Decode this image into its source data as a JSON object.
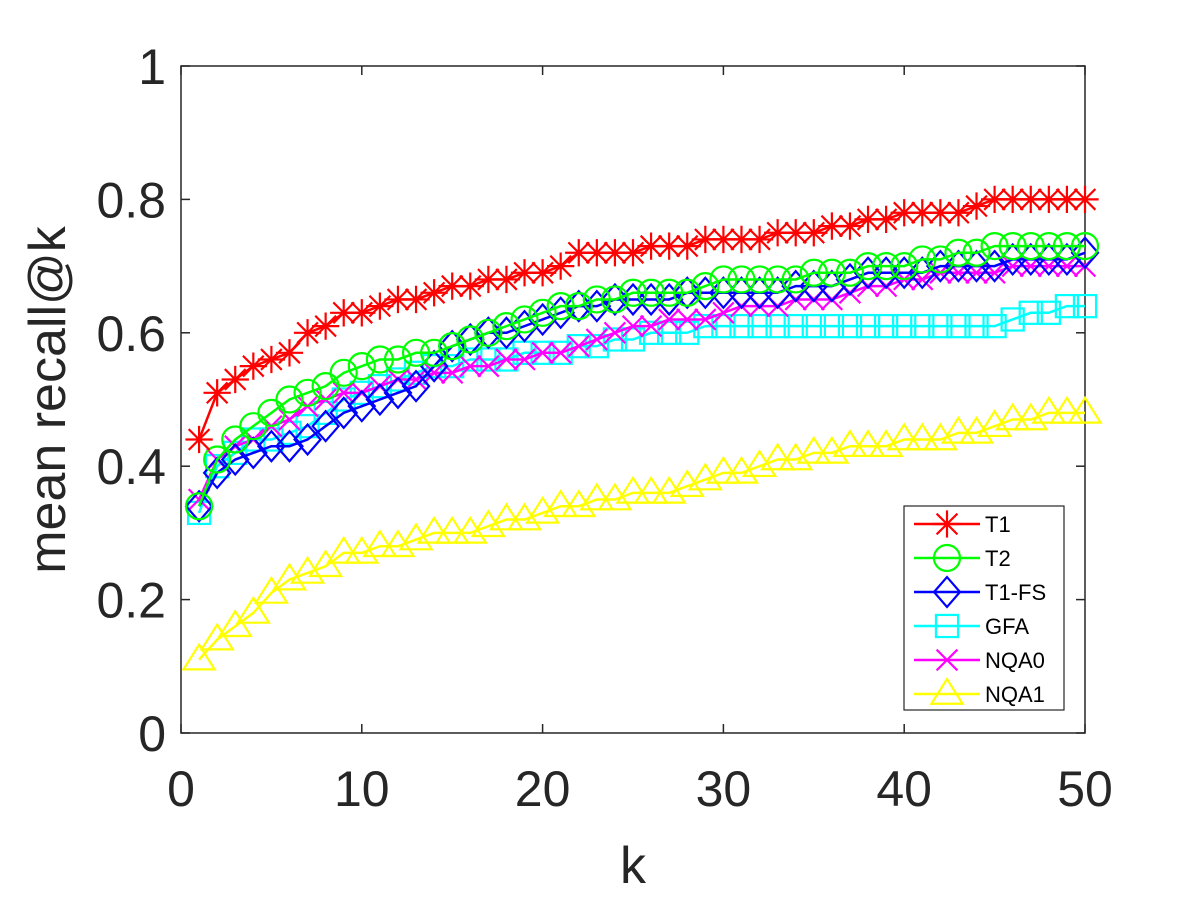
{
  "chart_data": {
    "type": "line",
    "title": "",
    "xlabel": "k",
    "ylabel": "mean recall@k",
    "xlim": [
      0,
      50
    ],
    "ylim": [
      0,
      1
    ],
    "xticks": [
      "0",
      "10",
      "20",
      "30",
      "40",
      "50"
    ],
    "yticks": [
      "0",
      "0.2",
      "0.4",
      "0.6",
      "0.8",
      "1"
    ],
    "grid": false,
    "legend_position": "bottom-right",
    "x": [
      1,
      2,
      3,
      4,
      5,
      6,
      7,
      8,
      9,
      10,
      11,
      12,
      13,
      14,
      15,
      16,
      17,
      18,
      19,
      20,
      21,
      22,
      23,
      24,
      25,
      26,
      27,
      28,
      29,
      30,
      31,
      32,
      33,
      34,
      35,
      36,
      37,
      38,
      39,
      40,
      41,
      42,
      43,
      44,
      45,
      46,
      47,
      48,
      49,
      50
    ],
    "series": [
      {
        "name": "T1",
        "color": "#ff0000",
        "marker": "star",
        "values": [
          0.44,
          0.51,
          0.53,
          0.55,
          0.56,
          0.57,
          0.6,
          0.61,
          0.63,
          0.63,
          0.64,
          0.65,
          0.65,
          0.66,
          0.67,
          0.67,
          0.68,
          0.68,
          0.69,
          0.69,
          0.7,
          0.72,
          0.72,
          0.72,
          0.72,
          0.73,
          0.73,
          0.73,
          0.74,
          0.74,
          0.74,
          0.74,
          0.75,
          0.75,
          0.75,
          0.76,
          0.76,
          0.77,
          0.77,
          0.78,
          0.78,
          0.78,
          0.78,
          0.79,
          0.8,
          0.8,
          0.8,
          0.8,
          0.8,
          0.8
        ]
      },
      {
        "name": "T2",
        "color": "#00ff00",
        "marker": "circle",
        "values": [
          0.34,
          0.41,
          0.44,
          0.46,
          0.48,
          0.5,
          0.51,
          0.52,
          0.54,
          0.55,
          0.56,
          0.56,
          0.57,
          0.57,
          0.58,
          0.59,
          0.6,
          0.61,
          0.62,
          0.63,
          0.64,
          0.64,
          0.65,
          0.65,
          0.66,
          0.66,
          0.66,
          0.66,
          0.67,
          0.68,
          0.68,
          0.68,
          0.68,
          0.68,
          0.69,
          0.69,
          0.69,
          0.7,
          0.7,
          0.7,
          0.71,
          0.71,
          0.72,
          0.72,
          0.73,
          0.73,
          0.73,
          0.73,
          0.73,
          0.73
        ]
      },
      {
        "name": "T1-FS",
        "color": "#0000ff",
        "marker": "diamond",
        "values": [
          0.34,
          0.39,
          0.41,
          0.42,
          0.43,
          0.43,
          0.44,
          0.46,
          0.48,
          0.49,
          0.5,
          0.51,
          0.52,
          0.55,
          0.58,
          0.59,
          0.6,
          0.6,
          0.61,
          0.62,
          0.63,
          0.64,
          0.64,
          0.65,
          0.65,
          0.65,
          0.65,
          0.66,
          0.66,
          0.66,
          0.66,
          0.66,
          0.66,
          0.67,
          0.67,
          0.67,
          0.68,
          0.69,
          0.69,
          0.69,
          0.69,
          0.7,
          0.7,
          0.7,
          0.7,
          0.71,
          0.71,
          0.71,
          0.71,
          0.72
        ]
      },
      {
        "name": "GFA",
        "color": "#00ffff",
        "marker": "square",
        "values": [
          0.33,
          0.4,
          0.42,
          0.44,
          0.44,
          0.45,
          0.46,
          0.48,
          0.5,
          0.51,
          0.52,
          0.53,
          0.54,
          0.55,
          0.55,
          0.56,
          0.56,
          0.56,
          0.57,
          0.57,
          0.57,
          0.58,
          0.58,
          0.59,
          0.59,
          0.6,
          0.6,
          0.6,
          0.61,
          0.61,
          0.61,
          0.61,
          0.61,
          0.61,
          0.61,
          0.61,
          0.61,
          0.61,
          0.61,
          0.61,
          0.61,
          0.61,
          0.61,
          0.61,
          0.61,
          0.62,
          0.63,
          0.63,
          0.64,
          0.64
        ]
      },
      {
        "name": "NQA0",
        "color": "#ff00ff",
        "marker": "x",
        "values": [
          0.35,
          0.41,
          0.43,
          0.44,
          0.46,
          0.47,
          0.49,
          0.5,
          0.51,
          0.51,
          0.52,
          0.53,
          0.53,
          0.54,
          0.54,
          0.55,
          0.55,
          0.56,
          0.56,
          0.57,
          0.57,
          0.58,
          0.59,
          0.6,
          0.61,
          0.61,
          0.62,
          0.62,
          0.62,
          0.63,
          0.64,
          0.64,
          0.64,
          0.65,
          0.65,
          0.65,
          0.66,
          0.67,
          0.67,
          0.68,
          0.68,
          0.69,
          0.69,
          0.69,
          0.69,
          0.7,
          0.7,
          0.7,
          0.7,
          0.7
        ]
      },
      {
        "name": "NQA1",
        "color": "#ffff00",
        "marker": "triangle",
        "values": [
          0.11,
          0.14,
          0.16,
          0.18,
          0.21,
          0.23,
          0.24,
          0.25,
          0.27,
          0.27,
          0.28,
          0.28,
          0.29,
          0.3,
          0.3,
          0.3,
          0.31,
          0.32,
          0.32,
          0.33,
          0.34,
          0.34,
          0.35,
          0.35,
          0.36,
          0.36,
          0.36,
          0.37,
          0.38,
          0.39,
          0.39,
          0.4,
          0.41,
          0.41,
          0.42,
          0.42,
          0.43,
          0.43,
          0.43,
          0.44,
          0.44,
          0.44,
          0.45,
          0.45,
          0.46,
          0.47,
          0.47,
          0.48,
          0.48,
          0.48
        ]
      }
    ]
  }
}
